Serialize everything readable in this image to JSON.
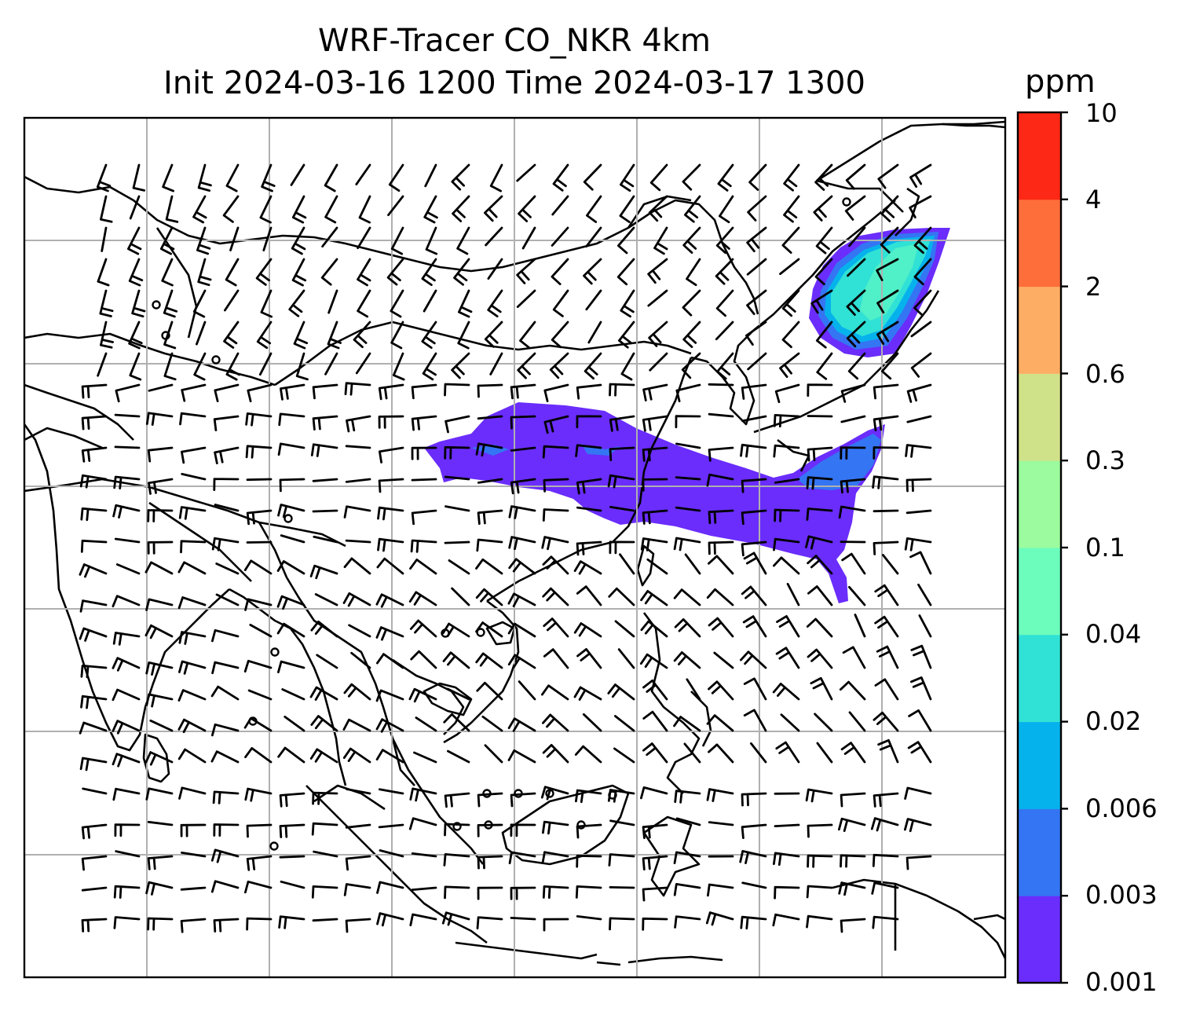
{
  "title": {
    "line1": "WRF-Tracer CO_NKR 4km",
    "line2": "Init 2024-03-16 1200 Time 2024-03-17 1300"
  },
  "colorbar": {
    "unit": "ppm",
    "levels": [
      "0.001",
      "0.003",
      "0.006",
      "0.02",
      "0.04",
      "0.1",
      "0.3",
      "0.6",
      "2",
      "4",
      "10"
    ],
    "colors": [
      "#6a2dfb",
      "#3475f3",
      "#06b2ec",
      "#30e1d5",
      "#6cfdbd",
      "#9bfb9e",
      "#d0e289",
      "#feae64",
      "#fe6e3b",
      "#fe2816"
    ]
  },
  "map": {
    "land_outline_color": "#000000",
    "gridline_color": "#b0b0b0",
    "barb_color": "#000000"
  }
}
